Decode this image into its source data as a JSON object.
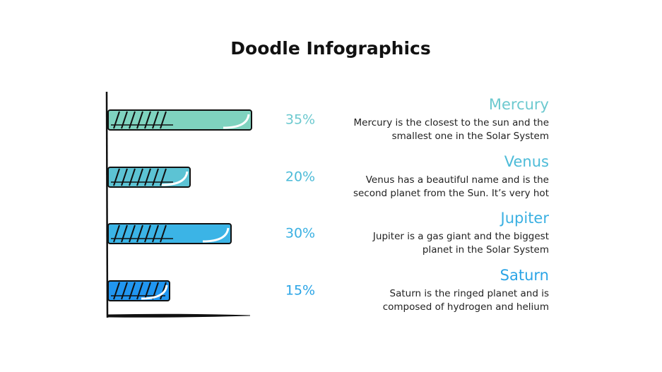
{
  "chart_data": {
    "type": "bar",
    "title": "Doodle Infographics",
    "categories": [
      "Mercury",
      "Venus",
      "Jupiter",
      "Saturn"
    ],
    "values": [
      35,
      20,
      30,
      15
    ],
    "value_labels": [
      "35%",
      "20%",
      "30%",
      "15%"
    ],
    "colors": [
      "#7fd3bf",
      "#5cc3d4",
      "#3bb4e6",
      "#2196f0"
    ],
    "label_colors": [
      "#6cc9cf",
      "#4cbbd8",
      "#3ab0e2",
      "#2aa4e6"
    ],
    "descriptions": [
      [
        "Mercury is the closest to the sun and the",
        "smallest one in the Solar System"
      ],
      [
        "Venus has a beautiful name and is the",
        "second planet from the Sun. It’s very hot"
      ],
      [
        "Jupiter is a gas giant and the biggest",
        "planet in the Solar System"
      ],
      [
        "Saturn is the ringed planet and is",
        "composed of hydrogen and helium"
      ]
    ]
  }
}
